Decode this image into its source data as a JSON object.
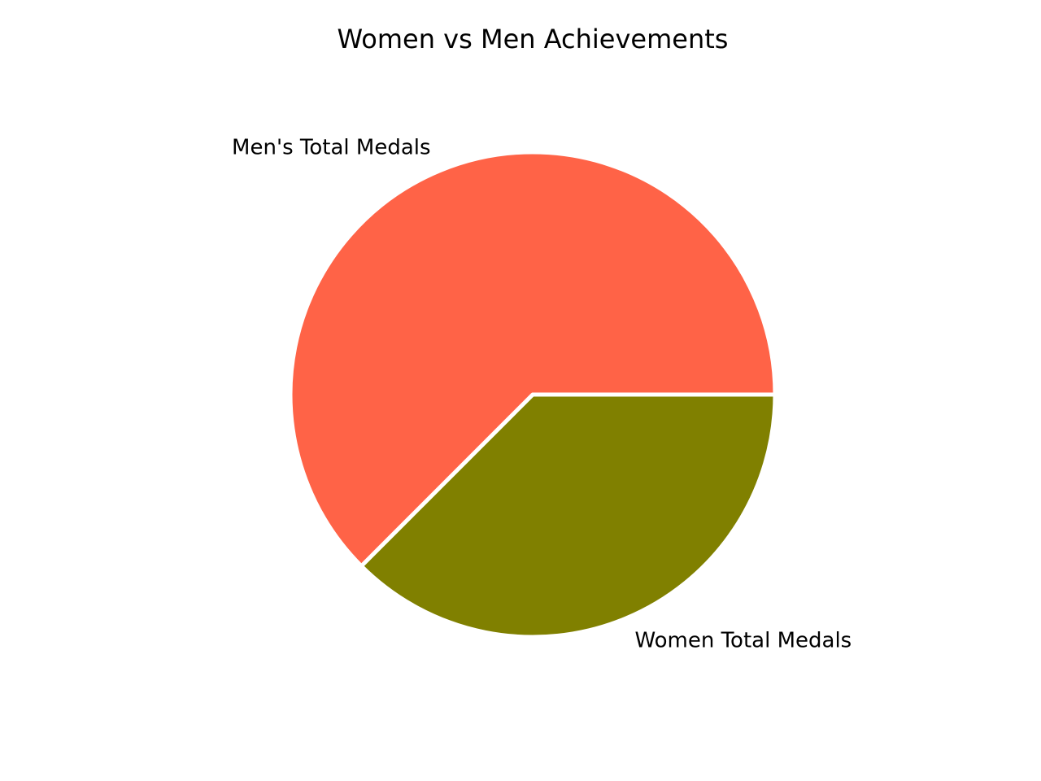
{
  "chart_data": {
    "type": "pie",
    "title": "Women vs Men Achievements",
    "labels": [
      "Women Total Medals",
      "Men's Total Medals"
    ],
    "values": [
      37.5,
      62.5
    ],
    "colors": [
      "#808000",
      "#FF6347"
    ],
    "start_angle_deg": 0,
    "direction": "clockwise",
    "legend": "none"
  }
}
